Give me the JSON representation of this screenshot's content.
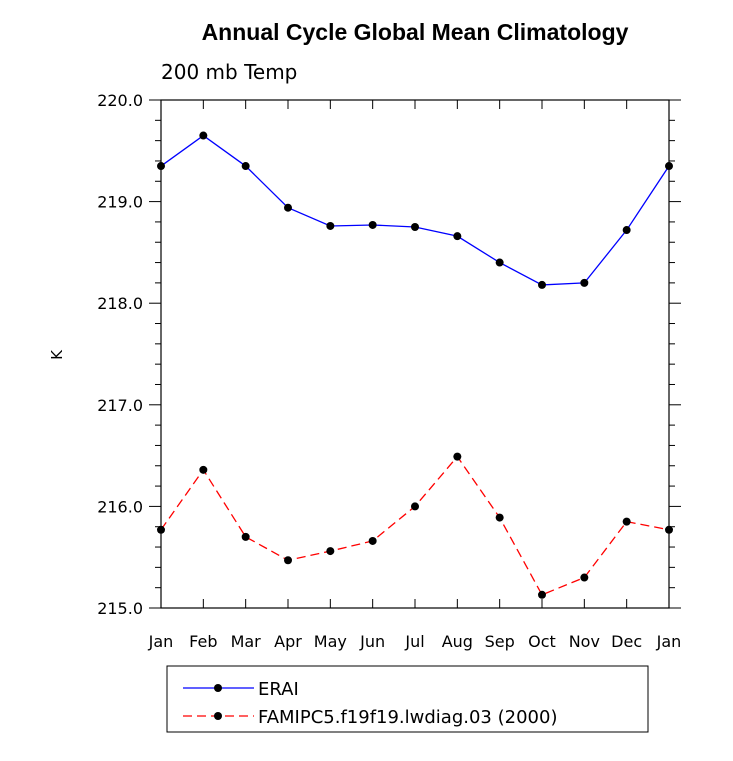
{
  "chart_data": {
    "type": "line",
    "title": "Annual Cycle Global Mean Climatology",
    "subtitle": "200 mb Temp",
    "xlabel": "",
    "ylabel": "K",
    "categories": [
      "Jan",
      "Feb",
      "Mar",
      "Apr",
      "May",
      "Jun",
      "Jul",
      "Aug",
      "Sep",
      "Oct",
      "Nov",
      "Dec",
      "Jan"
    ],
    "ylim": [
      215.0,
      220.0
    ],
    "yticks": [
      215.0,
      216.0,
      217.0,
      218.0,
      219.0,
      220.0
    ],
    "ytick_labels": [
      "215.0",
      "216.0",
      "217.0",
      "218.0",
      "219.0",
      "220.0"
    ],
    "grid": false,
    "legend_position": "bottom-center",
    "series": [
      {
        "name": "ERAI",
        "color": "#0000ff",
        "line_style": "solid",
        "marker": "filled-circle",
        "values": [
          219.35,
          219.65,
          219.35,
          218.94,
          218.76,
          218.77,
          218.75,
          218.66,
          218.4,
          218.18,
          218.2,
          218.72,
          219.35
        ]
      },
      {
        "name": "FAMIPC5.f19f19.lwdiag.03 (2000)",
        "color": "#ff0000",
        "line_style": "dashed",
        "marker": "filled-circle",
        "values": [
          215.77,
          216.36,
          215.7,
          215.47,
          215.56,
          215.66,
          216.0,
          216.49,
          215.89,
          215.13,
          215.3,
          215.85,
          215.77
        ]
      }
    ]
  }
}
